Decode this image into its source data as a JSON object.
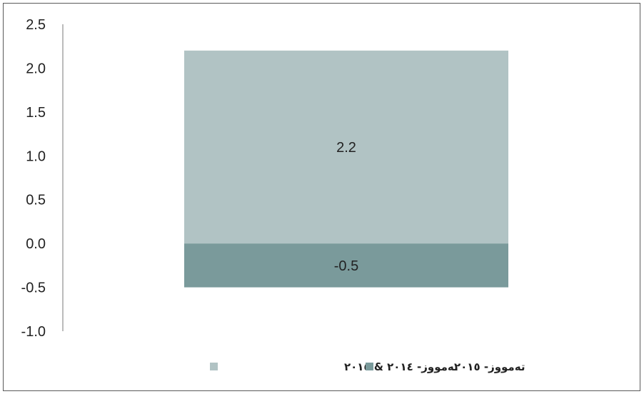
{
  "chart_data": {
    "type": "bar",
    "stacked": true,
    "categories": [
      ""
    ],
    "series": [
      {
        "name": "تەمووز- ٢٠١٤ & ٢٠١٥",
        "values": [
          2.2
        ],
        "color": "#b1c3c4"
      },
      {
        "name": "تەمووز- ٢٠١٥",
        "values": [
          -0.5
        ],
        "color": "#7a9a9b"
      }
    ],
    "data_labels": [
      "2.2",
      "-0.5"
    ],
    "yticks": [
      "2.5",
      "2.0",
      "1.5",
      "1.0",
      "0.5",
      "0.0",
      "-0.5",
      "-1.0"
    ],
    "ylim": [
      -1.0,
      2.5
    ],
    "grid": false,
    "legend_position": "bottom"
  }
}
